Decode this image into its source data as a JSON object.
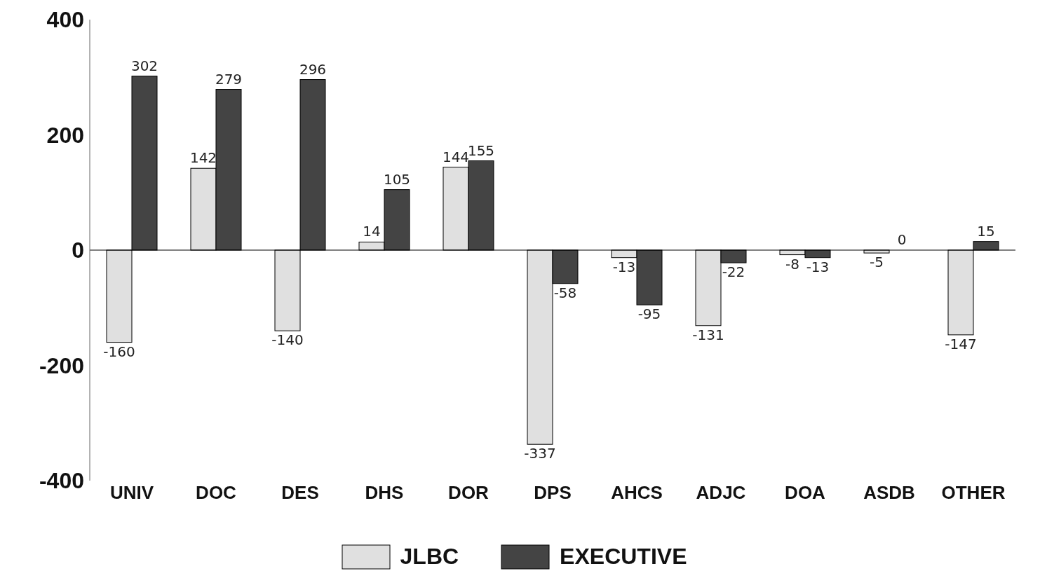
{
  "chart_data": {
    "type": "bar",
    "categories": [
      "UNIV",
      "DOC",
      "DES",
      "DHS",
      "DOR",
      "DPS",
      "AHCS",
      "ADJC",
      "DOA",
      "ASDB",
      "OTHER"
    ],
    "series": [
      {
        "name": "JLBC",
        "color": "#e0e0e0",
        "values": [
          -160,
          142,
          -140,
          14,
          144,
          -337,
          -13,
          -131,
          -8,
          -5,
          -147
        ]
      },
      {
        "name": "EXECUTIVE",
        "color": "#444444",
        "values": [
          302,
          279,
          296,
          105,
          155,
          -58,
          -95,
          -22,
          -13,
          0,
          15
        ]
      }
    ],
    "ref_lines": [
      {
        "axis": "y",
        "value": 0,
        "color": "#000000"
      }
    ],
    "ylim": [
      -400,
      400
    ],
    "yticks": [
      -400,
      -200,
      0,
      200,
      400
    ],
    "legend": "bottom",
    "data_labels": true
  }
}
